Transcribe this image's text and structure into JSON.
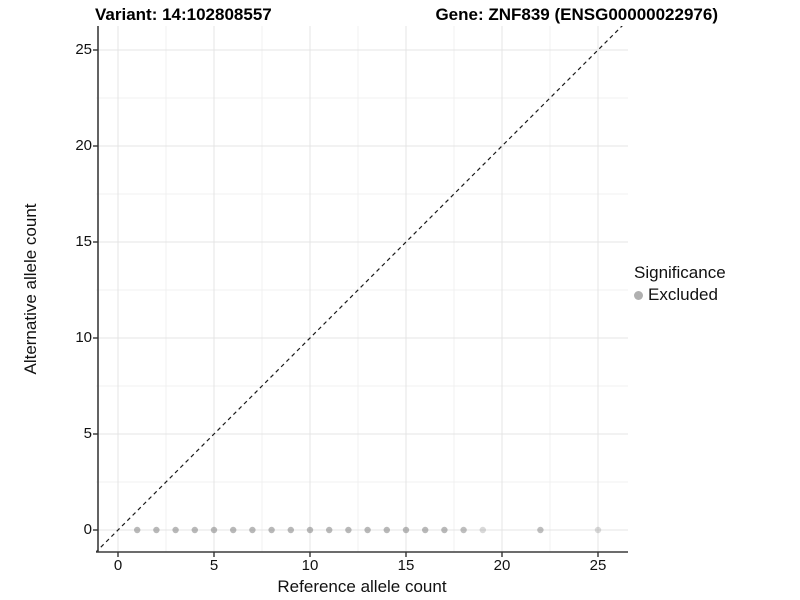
{
  "titles": {
    "left": "Variant: 14:102808557",
    "right": "Gene: ZNF839 (ENSG00000022976)"
  },
  "chart_data": {
    "type": "scatter",
    "xlabel": "Reference allele count",
    "ylabel": "Alternative allele count",
    "xlim": [
      -1.15,
      26.55
    ],
    "ylim": [
      -1.15,
      26.25
    ],
    "x_ticks": [
      0,
      5,
      10,
      15,
      20,
      25
    ],
    "y_ticks": [
      0,
      5,
      10,
      15,
      20,
      25
    ],
    "minor_ticks": [
      2.5,
      7.5,
      12.5,
      17.5,
      22.5
    ],
    "grid": "major+minor",
    "reference_line": {
      "type": "identity y=x",
      "style": "dashed",
      "color": "#1a1a1a"
    },
    "legend": {
      "title": "Significance",
      "position": "right",
      "entries": [
        {
          "label": "Excluded",
          "color": "#b0b0b0"
        }
      ]
    },
    "series": [
      {
        "name": "Excluded",
        "point_color": "#808080",
        "points": [
          {
            "x": 1,
            "y": 0,
            "alpha": 0.55
          },
          {
            "x": 2,
            "y": 0,
            "alpha": 0.55
          },
          {
            "x": 3,
            "y": 0,
            "alpha": 0.55
          },
          {
            "x": 4,
            "y": 0,
            "alpha": 0.55
          },
          {
            "x": 5,
            "y": 0,
            "alpha": 0.55
          },
          {
            "x": 6,
            "y": 0,
            "alpha": 0.55
          },
          {
            "x": 7,
            "y": 0,
            "alpha": 0.55
          },
          {
            "x": 8,
            "y": 0,
            "alpha": 0.55
          },
          {
            "x": 9,
            "y": 0,
            "alpha": 0.55
          },
          {
            "x": 10,
            "y": 0,
            "alpha": 0.55
          },
          {
            "x": 11,
            "y": 0,
            "alpha": 0.55
          },
          {
            "x": 12,
            "y": 0,
            "alpha": 0.55
          },
          {
            "x": 13,
            "y": 0,
            "alpha": 0.55
          },
          {
            "x": 14,
            "y": 0,
            "alpha": 0.55
          },
          {
            "x": 15,
            "y": 0,
            "alpha": 0.55
          },
          {
            "x": 16,
            "y": 0,
            "alpha": 0.55
          },
          {
            "x": 17,
            "y": 0,
            "alpha": 0.55
          },
          {
            "x": 18,
            "y": 0,
            "alpha": 0.5
          },
          {
            "x": 19,
            "y": 0,
            "alpha": 0.3
          },
          {
            "x": 22,
            "y": 0,
            "alpha": 0.5
          },
          {
            "x": 25,
            "y": 0,
            "alpha": 0.3
          }
        ]
      }
    ],
    "style": {
      "grid_major_color": "#e4e4e4",
      "grid_minor_color": "#f1f1f1",
      "axis_line_color": "#3c3c3c",
      "tick_color": "#333333",
      "panel_background": "#ffffff"
    }
  }
}
